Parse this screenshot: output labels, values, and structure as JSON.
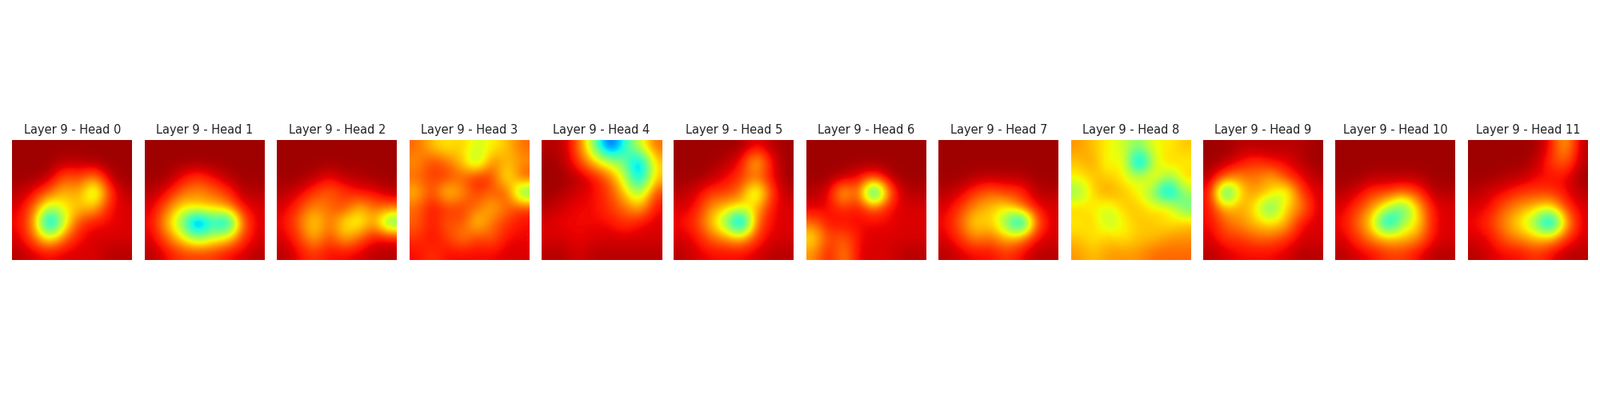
{
  "chart_data": [
    {
      "type": "heatmap",
      "title": "Layer 9 - Head 0",
      "tick_labels": false,
      "color_range": [
        0,
        1
      ],
      "cells": [
        [
          0.03,
          0.03,
          0.03,
          0.03,
          0.03,
          0.03,
          0.03,
          0.03
        ],
        [
          0.03,
          0.03,
          0.03,
          0.05,
          0.05,
          0.03,
          0.03,
          0.03
        ],
        [
          0.03,
          0.03,
          0.05,
          0.2,
          0.15,
          0.25,
          0.05,
          0.03
        ],
        [
          0.05,
          0.1,
          0.2,
          0.3,
          0.25,
          0.5,
          0.15,
          0.05
        ],
        [
          0.08,
          0.2,
          0.45,
          0.35,
          0.3,
          0.3,
          0.1,
          0.08
        ],
        [
          0.1,
          0.25,
          0.85,
          0.4,
          0.15,
          0.1,
          0.1,
          0.08
        ],
        [
          0.08,
          0.2,
          0.4,
          0.2,
          0.1,
          0.08,
          0.08,
          0.08
        ],
        [
          0.05,
          0.08,
          0.1,
          0.08,
          0.08,
          0.08,
          0.05,
          0.05
        ]
      ]
    },
    {
      "type": "heatmap",
      "title": "Layer 9 - Head 1",
      "tick_labels": false,
      "color_range": [
        0,
        1
      ],
      "cells": [
        [
          0.03,
          0.03,
          0.03,
          0.03,
          0.03,
          0.03,
          0.03,
          0.03
        ],
        [
          0.03,
          0.03,
          0.03,
          0.03,
          0.03,
          0.03,
          0.03,
          0.03
        ],
        [
          0.03,
          0.03,
          0.1,
          0.15,
          0.1,
          0.05,
          0.03,
          0.03
        ],
        [
          0.05,
          0.1,
          0.2,
          0.25,
          0.2,
          0.15,
          0.05,
          0.05
        ],
        [
          0.08,
          0.2,
          0.35,
          0.3,
          0.3,
          0.25,
          0.1,
          0.08
        ],
        [
          0.1,
          0.3,
          0.5,
          0.9,
          0.6,
          0.8,
          0.2,
          0.08
        ],
        [
          0.08,
          0.2,
          0.35,
          0.5,
          0.4,
          0.35,
          0.15,
          0.08
        ],
        [
          0.05,
          0.1,
          0.15,
          0.15,
          0.15,
          0.1,
          0.08,
          0.05
        ]
      ]
    },
    {
      "type": "heatmap",
      "title": "Layer 9 - Head 2",
      "tick_labels": false,
      "color_range": [
        0,
        1
      ],
      "cells": [
        [
          0.03,
          0.03,
          0.03,
          0.03,
          0.03,
          0.03,
          0.03,
          0.03
        ],
        [
          0.03,
          0.03,
          0.03,
          0.03,
          0.03,
          0.03,
          0.03,
          0.03
        ],
        [
          0.03,
          0.03,
          0.05,
          0.1,
          0.05,
          0.05,
          0.03,
          0.03
        ],
        [
          0.05,
          0.08,
          0.15,
          0.2,
          0.15,
          0.1,
          0.1,
          0.05
        ],
        [
          0.08,
          0.15,
          0.25,
          0.2,
          0.15,
          0.3,
          0.2,
          0.2
        ],
        [
          0.1,
          0.2,
          0.35,
          0.2,
          0.35,
          0.4,
          0.25,
          0.6
        ],
        [
          0.08,
          0.15,
          0.3,
          0.15,
          0.3,
          0.2,
          0.1,
          0.1
        ],
        [
          0.05,
          0.1,
          0.15,
          0.1,
          0.1,
          0.08,
          0.05,
          0.05
        ]
      ]
    },
    {
      "type": "heatmap",
      "title": "Layer 9 - Head 3",
      "tick_labels": false,
      "color_range": [
        0,
        1
      ],
      "cells": [
        [
          0.2,
          0.3,
          0.35,
          0.3,
          0.4,
          0.35,
          0.3,
          0.2
        ],
        [
          0.25,
          0.15,
          0.2,
          0.3,
          0.5,
          0.2,
          0.3,
          0.25
        ],
        [
          0.2,
          0.15,
          0.15,
          0.2,
          0.1,
          0.15,
          0.4,
          0.15
        ],
        [
          0.3,
          0.15,
          0.35,
          0.25,
          0.15,
          0.2,
          0.15,
          0.6
        ],
        [
          0.2,
          0.1,
          0.15,
          0.15,
          0.2,
          0.3,
          0.2,
          0.15
        ],
        [
          0.2,
          0.1,
          0.2,
          0.15,
          0.35,
          0.2,
          0.15,
          0.1
        ],
        [
          0.15,
          0.1,
          0.15,
          0.25,
          0.15,
          0.2,
          0.1,
          0.1
        ],
        [
          0.1,
          0.15,
          0.1,
          0.1,
          0.1,
          0.1,
          0.08,
          0.08
        ]
      ]
    },
    {
      "type": "heatmap",
      "title": "Layer 9 - Head 4",
      "tick_labels": false,
      "color_range": [
        0,
        1
      ],
      "cells": [
        [
          0.05,
          0.05,
          0.2,
          0.5,
          0.85,
          0.6,
          0.4,
          0.2
        ],
        [
          0.03,
          0.05,
          0.15,
          0.3,
          0.4,
          0.5,
          0.8,
          0.3
        ],
        [
          0.03,
          0.03,
          0.05,
          0.1,
          0.2,
          0.4,
          0.75,
          0.3
        ],
        [
          0.03,
          0.05,
          0.08,
          0.1,
          0.15,
          0.3,
          0.5,
          0.15
        ],
        [
          0.05,
          0.08,
          0.1,
          0.1,
          0.15,
          0.2,
          0.3,
          0.1
        ],
        [
          0.08,
          0.1,
          0.1,
          0.1,
          0.1,
          0.15,
          0.1,
          0.08
        ],
        [
          0.08,
          0.08,
          0.1,
          0.08,
          0.08,
          0.08,
          0.08,
          0.08
        ],
        [
          0.05,
          0.05,
          0.08,
          0.05,
          0.05,
          0.05,
          0.05,
          0.05
        ]
      ]
    },
    {
      "type": "heatmap",
      "title": "Layer 9 - Head 5",
      "tick_labels": false,
      "color_range": [
        0,
        1
      ],
      "cells": [
        [
          0.03,
          0.03,
          0.03,
          0.03,
          0.03,
          0.1,
          0.05,
          0.03
        ],
        [
          0.03,
          0.03,
          0.03,
          0.05,
          0.1,
          0.35,
          0.1,
          0.03
        ],
        [
          0.03,
          0.03,
          0.05,
          0.1,
          0.15,
          0.2,
          0.1,
          0.03
        ],
        [
          0.05,
          0.08,
          0.15,
          0.15,
          0.2,
          0.5,
          0.15,
          0.05
        ],
        [
          0.08,
          0.1,
          0.25,
          0.3,
          0.35,
          0.3,
          0.1,
          0.08
        ],
        [
          0.1,
          0.15,
          0.3,
          0.5,
          0.9,
          0.2,
          0.1,
          0.08
        ],
        [
          0.08,
          0.1,
          0.2,
          0.25,
          0.3,
          0.15,
          0.08,
          0.08
        ],
        [
          0.05,
          0.08,
          0.1,
          0.1,
          0.1,
          0.08,
          0.05,
          0.05
        ]
      ]
    },
    {
      "type": "heatmap",
      "title": "Layer 9 - Head 6",
      "tick_labels": false,
      "color_range": [
        0,
        1
      ],
      "cells": [
        [
          0.03,
          0.03,
          0.03,
          0.03,
          0.03,
          0.03,
          0.03,
          0.03
        ],
        [
          0.03,
          0.03,
          0.03,
          0.03,
          0.03,
          0.03,
          0.03,
          0.03
        ],
        [
          0.03,
          0.03,
          0.05,
          0.1,
          0.15,
          0.05,
          0.03,
          0.03
        ],
        [
          0.05,
          0.08,
          0.35,
          0.15,
          0.85,
          0.2,
          0.05,
          0.05
        ],
        [
          0.08,
          0.1,
          0.15,
          0.1,
          0.2,
          0.1,
          0.08,
          0.08
        ],
        [
          0.2,
          0.1,
          0.1,
          0.1,
          0.1,
          0.1,
          0.08,
          0.08
        ],
        [
          0.35,
          0.15,
          0.2,
          0.1,
          0.08,
          0.08,
          0.08,
          0.08
        ],
        [
          0.25,
          0.1,
          0.25,
          0.08,
          0.08,
          0.08,
          0.05,
          0.05
        ]
      ]
    },
    {
      "type": "heatmap",
      "title": "Layer 9 - Head 7",
      "tick_labels": false,
      "color_range": [
        0,
        1
      ],
      "cells": [
        [
          0.03,
          0.03,
          0.03,
          0.03,
          0.03,
          0.03,
          0.03,
          0.03
        ],
        [
          0.03,
          0.03,
          0.03,
          0.03,
          0.03,
          0.03,
          0.03,
          0.03
        ],
        [
          0.03,
          0.03,
          0.05,
          0.05,
          0.05,
          0.05,
          0.03,
          0.03
        ],
        [
          0.05,
          0.08,
          0.15,
          0.2,
          0.15,
          0.15,
          0.05,
          0.05
        ],
        [
          0.08,
          0.15,
          0.25,
          0.3,
          0.35,
          0.2,
          0.1,
          0.08
        ],
        [
          0.1,
          0.2,
          0.35,
          0.3,
          0.5,
          0.85,
          0.2,
          0.08
        ],
        [
          0.08,
          0.15,
          0.25,
          0.2,
          0.3,
          0.25,
          0.1,
          0.08
        ],
        [
          0.05,
          0.08,
          0.1,
          0.1,
          0.15,
          0.1,
          0.05,
          0.05
        ]
      ]
    },
    {
      "type": "heatmap",
      "title": "Layer 9 - Head 8",
      "tick_labels": false,
      "color_range": [
        0,
        1
      ],
      "cells": [
        [
          0.25,
          0.3,
          0.35,
          0.4,
          0.5,
          0.35,
          0.35,
          0.3
        ],
        [
          0.3,
          0.25,
          0.4,
          0.3,
          0.85,
          0.4,
          0.3,
          0.35
        ],
        [
          0.35,
          0.3,
          0.3,
          0.35,
          0.4,
          0.3,
          0.5,
          0.3
        ],
        [
          0.5,
          0.3,
          0.25,
          0.3,
          0.35,
          0.5,
          0.8,
          0.45
        ],
        [
          0.3,
          0.35,
          0.4,
          0.3,
          0.3,
          0.35,
          0.3,
          0.55
        ],
        [
          0.35,
          0.3,
          0.45,
          0.35,
          0.3,
          0.3,
          0.35,
          0.3
        ],
        [
          0.3,
          0.35,
          0.3,
          0.35,
          0.3,
          0.3,
          0.25,
          0.25
        ],
        [
          0.25,
          0.3,
          0.25,
          0.25,
          0.25,
          0.2,
          0.2,
          0.2
        ]
      ]
    },
    {
      "type": "heatmap",
      "title": "Layer 9 - Head 9",
      "tick_labels": false,
      "color_range": [
        0,
        1
      ],
      "cells": [
        [
          0.03,
          0.03,
          0.05,
          0.05,
          0.05,
          0.05,
          0.05,
          0.03
        ],
        [
          0.03,
          0.05,
          0.1,
          0.15,
          0.1,
          0.1,
          0.05,
          0.03
        ],
        [
          0.05,
          0.2,
          0.25,
          0.2,
          0.3,
          0.15,
          0.1,
          0.05
        ],
        [
          0.1,
          0.75,
          0.3,
          0.25,
          0.3,
          0.45,
          0.15,
          0.08
        ],
        [
          0.1,
          0.3,
          0.25,
          0.35,
          0.6,
          0.3,
          0.25,
          0.08
        ],
        [
          0.1,
          0.2,
          0.25,
          0.3,
          0.35,
          0.3,
          0.1,
          0.08
        ],
        [
          0.08,
          0.15,
          0.15,
          0.2,
          0.2,
          0.15,
          0.08,
          0.08
        ],
        [
          0.05,
          0.08,
          0.1,
          0.1,
          0.1,
          0.08,
          0.05,
          0.05
        ]
      ]
    },
    {
      "type": "heatmap",
      "title": "Layer 9 - Head 10",
      "tick_labels": false,
      "color_range": [
        0,
        1
      ],
      "cells": [
        [
          0.03,
          0.03,
          0.03,
          0.03,
          0.03,
          0.03,
          0.03,
          0.03
        ],
        [
          0.03,
          0.03,
          0.03,
          0.03,
          0.03,
          0.03,
          0.03,
          0.03
        ],
        [
          0.03,
          0.03,
          0.05,
          0.05,
          0.05,
          0.05,
          0.03,
          0.03
        ],
        [
          0.05,
          0.08,
          0.15,
          0.15,
          0.2,
          0.15,
          0.05,
          0.05
        ],
        [
          0.08,
          0.15,
          0.25,
          0.4,
          0.6,
          0.3,
          0.1,
          0.08
        ],
        [
          0.1,
          0.2,
          0.35,
          0.8,
          0.45,
          0.35,
          0.1,
          0.08
        ],
        [
          0.08,
          0.15,
          0.25,
          0.3,
          0.3,
          0.25,
          0.1,
          0.08
        ],
        [
          0.05,
          0.08,
          0.1,
          0.15,
          0.15,
          0.1,
          0.05,
          0.05
        ]
      ]
    },
    {
      "type": "heatmap",
      "title": "Layer 9 - Head 11",
      "tick_labels": false,
      "color_range": [
        0,
        1
      ],
      "cells": [
        [
          0.03,
          0.03,
          0.03,
          0.03,
          0.03,
          0.1,
          0.3,
          0.05
        ],
        [
          0.03,
          0.03,
          0.03,
          0.03,
          0.05,
          0.15,
          0.2,
          0.05
        ],
        [
          0.03,
          0.03,
          0.05,
          0.05,
          0.1,
          0.1,
          0.1,
          0.03
        ],
        [
          0.05,
          0.08,
          0.1,
          0.15,
          0.15,
          0.15,
          0.1,
          0.05
        ],
        [
          0.08,
          0.1,
          0.2,
          0.25,
          0.3,
          0.35,
          0.15,
          0.08
        ],
        [
          0.1,
          0.15,
          0.25,
          0.35,
          0.5,
          0.85,
          0.3,
          0.08
        ],
        [
          0.08,
          0.1,
          0.2,
          0.25,
          0.3,
          0.3,
          0.15,
          0.08
        ],
        [
          0.05,
          0.08,
          0.1,
          0.1,
          0.15,
          0.1,
          0.05,
          0.05
        ]
      ]
    }
  ]
}
